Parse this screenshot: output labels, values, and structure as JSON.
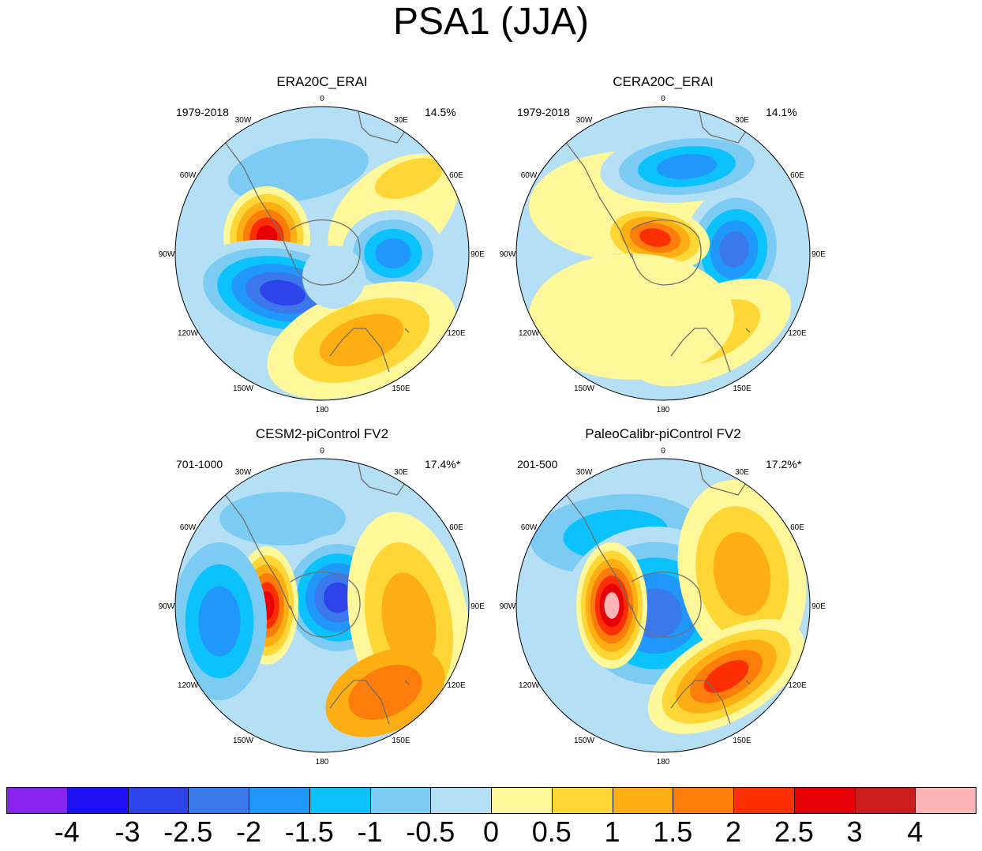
{
  "title": "PSA1 (JJA)",
  "lon_labels": [
    "0",
    "30E",
    "60E",
    "90E",
    "120E",
    "150E",
    "180",
    "150W",
    "120W",
    "90W",
    "60W",
    "30W"
  ],
  "panels": [
    {
      "title": "ERA20C_ERAI",
      "years": "1979-2018",
      "variance": "14.5%"
    },
    {
      "title": "CERA20C_ERAI",
      "years": "1979-2018",
      "variance": "14.1%"
    },
    {
      "title": "CESM2-piControl FV2",
      "years": "701-1000",
      "variance": "17.4%*"
    },
    {
      "title": "PaleoCalibr-piControl FV2",
      "years": "201-500",
      "variance": "17.2%*"
    }
  ],
  "colorbar": {
    "colors": [
      "#8a23ee",
      "#1e12f5",
      "#2e43ea",
      "#3a78ec",
      "#1f97fb",
      "#0bc2fc",
      "#7bcbf3",
      "#b4dff4",
      "#fff89a",
      "#fed737",
      "#fdae12",
      "#fc7d0a",
      "#fb2f02",
      "#e60106",
      "#cb1d1d",
      "#fdb4b4"
    ],
    "labels": [
      "-4",
      "-3",
      "-2.5",
      "-2",
      "-1.5",
      "-1",
      "-0.5",
      "0",
      "0.5",
      "1",
      "1.5",
      "2",
      "2.5",
      "3",
      "4"
    ]
  }
}
